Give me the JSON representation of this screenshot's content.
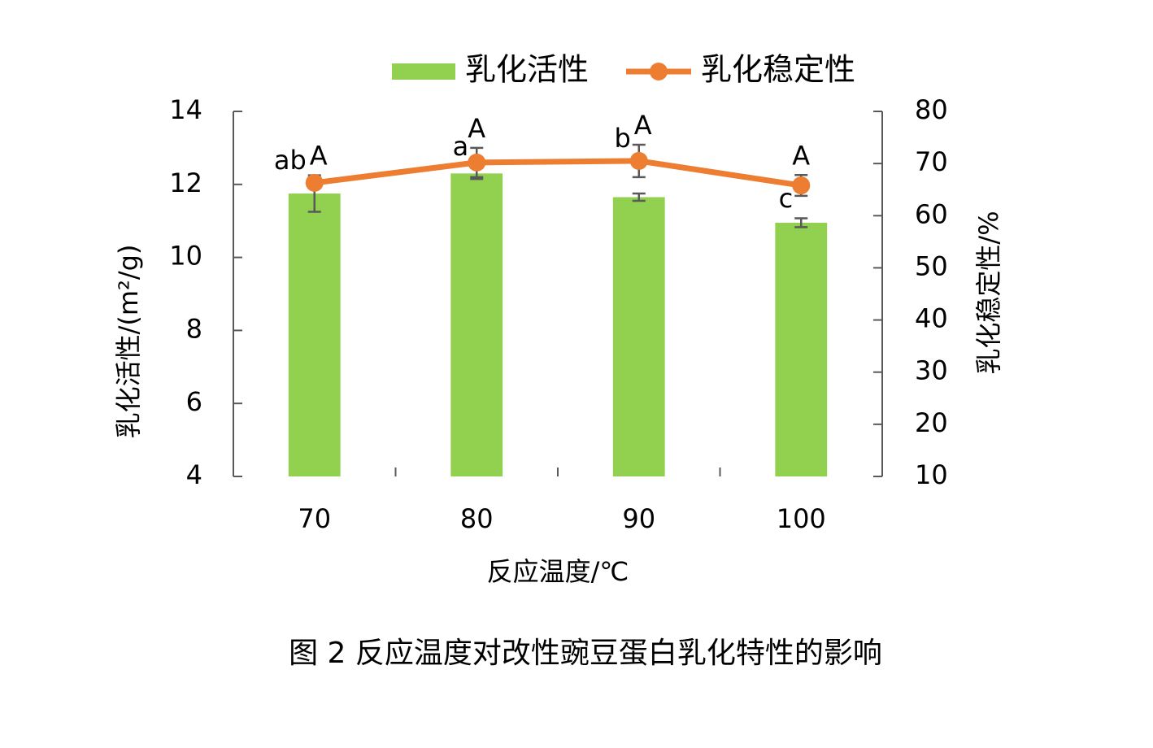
{
  "chart_data": {
    "type": "bar_line",
    "x_label": "反应温度/℃",
    "y_label": "乳化活性/(m²/g)",
    "y2_label": "乳化稳定性/%",
    "caption": "图 2 反应温度对改性豌豆蛋白乳化特性的影响",
    "categories": [
      "70",
      "80",
      "90",
      "100"
    ],
    "series": [
      {
        "name": "乳化活性",
        "type": "bar",
        "color": "#92d050",
        "values": [
          11.75,
          12.3,
          11.65,
          10.95
        ],
        "errors": [
          0.5,
          0.15,
          0.1,
          0.12
        ],
        "labels": [
          "ab",
          "a",
          "b",
          "c"
        ]
      },
      {
        "name": "乳化稳定性",
        "type": "line",
        "axis": "y2",
        "color": "#ed7d31",
        "values": [
          66.3,
          70.2,
          70.5,
          65.8
        ],
        "errors": [
          1,
          2.8,
          3.1,
          2
        ],
        "labels": [
          "A",
          "A",
          "A",
          "A"
        ]
      }
    ],
    "ylim": [
      4,
      14
    ],
    "yticks": [
      4,
      6,
      8,
      10,
      12,
      14
    ],
    "y2lim": [
      10,
      80
    ],
    "y2ticks": [
      10,
      20,
      30,
      40,
      50,
      60,
      70,
      80
    ],
    "legend": "top"
  }
}
